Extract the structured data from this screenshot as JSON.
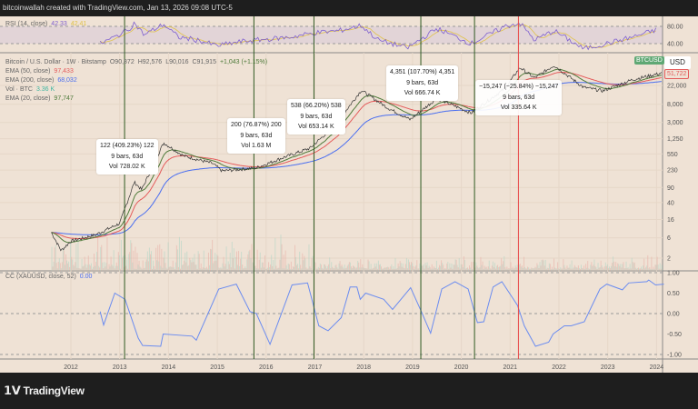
{
  "header": {
    "caption": "bitcoinwallah created with TradingView.com, Jan 13, 2026 09:08 UTC-5"
  },
  "rsi": {
    "label": "RSI (14, close)",
    "value": "42.33",
    "ma_value": "42.41",
    "ticks": [
      "80.00",
      "40.00"
    ],
    "x": [
      2012.6,
      2012.9,
      2013.2,
      2013.3,
      2013.5,
      2013.9,
      2014.2,
      2014.6,
      2015.0,
      2015.5,
      2016.0,
      2016.5,
      2017.0,
      2017.5,
      2017.95,
      2018.3,
      2018.9,
      2019.5,
      2020.2,
      2020.9,
      2021.2,
      2021.5,
      2021.9,
      2022.5,
      2022.9,
      2023.5,
      2024.0
    ],
    "y": [
      40,
      55,
      75,
      88,
      60,
      85,
      55,
      48,
      35,
      45,
      50,
      55,
      65,
      70,
      82,
      48,
      30,
      75,
      40,
      80,
      88,
      48,
      70,
      28,
      38,
      55,
      72
    ]
  },
  "price": {
    "legend": {
      "symbol": "Bitcoin / U.S. Dollar · 1W · Bitstamp",
      "open": "O90,872",
      "high": "H92,576",
      "low": "L90,016",
      "close": "C91,915",
      "change": "+1,043 (+1.15%)"
    },
    "ema50": {
      "label": "EMA (50, close)",
      "value": "97,433",
      "color": "#e45b5b"
    },
    "ema200": {
      "label": "EMA (200, close)",
      "value": "68,032",
      "color": "#4a6ef0"
    },
    "vol": {
      "label": "Vol · BTC",
      "value": "3.36 K",
      "color": "#3fb5a0"
    },
    "ema20": {
      "label": "EMA (20, close)",
      "value": "97,747",
      "color": "#4e7a3a"
    },
    "symbol_tag": "BTCUSD",
    "currency": "USD",
    "last_label": "51,722",
    "ticks": [
      "22,000",
      "8,000",
      "3,000",
      "1,250",
      "550",
      "230",
      "90",
      "40",
      "16",
      "6",
      "2"
    ]
  },
  "annotations": [
    {
      "line1": "122 (409.23%) 122",
      "line2": "9 bars, 63d",
      "line3": "Vol 728.02 K"
    },
    {
      "line1": "200 (76.87%) 200",
      "line2": "9 bars, 63d",
      "line3": "Vol 1.63 M"
    },
    {
      "line1": "538 (66.20%) 538",
      "line2": "9 bars, 63d",
      "line3": "Vol 653.14 K"
    },
    {
      "line1": "4,351 (107.70%) 4,351",
      "line2": "9 bars, 63d",
      "line3": "Vol 666.74 K"
    },
    {
      "line1": "−15,247 (−25.84%) −15,247",
      "line2": "9 bars, 63d",
      "line3": "Vol 335.64 K"
    }
  ],
  "cc": {
    "label": "CC (XAUUSD, close, 52)",
    "value": "0.00",
    "ticks": [
      "1.00",
      "0.50",
      "0.00",
      "-0.50",
      "-1.00"
    ]
  },
  "x_ticks": [
    "2012",
    "2013",
    "2014",
    "2015",
    "2016",
    "2017",
    "2018",
    "2019",
    "2020",
    "2021",
    "2022",
    "2023",
    "2024"
  ],
  "footer": {
    "logo": "TradingView"
  },
  "chart_data": [
    {
      "type": "line",
      "title": "Bitcoin / U.S. Dollar · 1W · Bitstamp",
      "yscale": "log",
      "ylim": [
        1.5,
        90000
      ],
      "xlim": [
        2011.1,
        2024.2
      ],
      "grid": true,
      "x": [
        2011.6,
        2011.8,
        2012.0,
        2012.5,
        2013.0,
        2013.3,
        2013.45,
        2013.9,
        2014.3,
        2014.9,
        2015.1,
        2015.8,
        2016.3,
        2016.9,
        2017.4,
        2017.95,
        2018.5,
        2018.95,
        2019.5,
        2020.2,
        2020.9,
        2021.2,
        2021.5,
        2021.9,
        2022.5,
        2022.9,
        2023.5,
        2024.1
      ],
      "series": [
        {
          "name": "BTCUSD",
          "values": [
            8,
            3,
            5,
            7,
            13,
            120,
            80,
            1000,
            500,
            330,
            220,
            260,
            430,
            750,
            2500,
            17000,
            6500,
            3500,
            11000,
            5000,
            19000,
            58000,
            33000,
            65000,
            20000,
            16500,
            30000,
            43000
          ]
        }
      ],
      "vertical_markers": [
        {
          "x": 2013.1,
          "color": "green"
        },
        {
          "x": 2015.75,
          "color": "green"
        },
        {
          "x": 2016.98,
          "color": "green"
        },
        {
          "x": 2019.17,
          "color": "green"
        },
        {
          "x": 2020.27,
          "color": "green"
        },
        {
          "x": 2021.17,
          "color": "red"
        }
      ]
    },
    {
      "type": "line",
      "title": "CC (XAUUSD, close, 52)",
      "ylim": [
        -1.1,
        1.1
      ],
      "grid": true,
      "x": [
        2012.6,
        2012.67,
        2012.9,
        2013.11,
        2013.38,
        2013.47,
        2013.84,
        2013.89,
        2014.48,
        2014.57,
        2015.03,
        2015.39,
        2015.67,
        2015.8,
        2016.08,
        2016.53,
        2016.85,
        2017.08,
        2017.27,
        2017.54,
        2017.72,
        2017.86,
        2017.93,
        2018.04,
        2018.41,
        2018.59,
        2018.96,
        2019.18,
        2019.37,
        2019.6,
        2019.87,
        2020.14,
        2020.33,
        2020.46,
        2020.65,
        2020.83,
        2021.15,
        2021.29,
        2021.52,
        2021.79,
        2021.88,
        2022.11,
        2022.25,
        2022.52,
        2022.84,
        2022.98,
        2023.3,
        2023.43,
        2023.8,
        2023.84,
        2023.98,
        2024.15
      ],
      "values": [
        0.05,
        -0.28,
        0.5,
        0.35,
        -0.6,
        -0.78,
        -0.8,
        -0.5,
        -0.55,
        -0.65,
        0.6,
        0.72,
        0.05,
        0.0,
        -0.75,
        0.7,
        0.75,
        -0.3,
        -0.42,
        -0.1,
        0.65,
        0.65,
        0.35,
        0.5,
        0.35,
        0.1,
        0.63,
        0.05,
        -0.48,
        0.6,
        0.78,
        0.6,
        -0.22,
        -0.2,
        0.65,
        0.78,
        0.2,
        -0.3,
        -0.8,
        -0.7,
        -0.5,
        -0.3,
        -0.3,
        -0.2,
        0.6,
        0.72,
        0.58,
        0.75,
        0.78,
        0.82,
        0.7,
        0.72
      ]
    }
  ]
}
